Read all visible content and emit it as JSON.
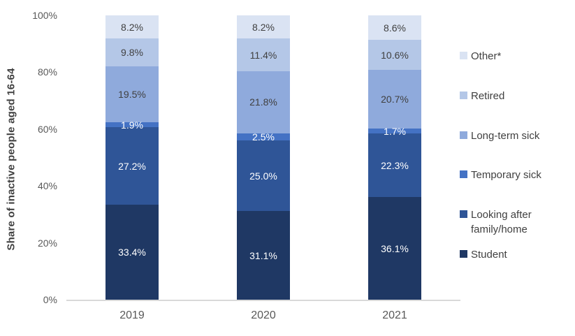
{
  "chart_data": {
    "type": "bar",
    "stacked": true,
    "orientation": "vertical",
    "title": "",
    "xlabel": "",
    "ylabel": "Share of inactive people aged 16-64",
    "ylim": [
      0,
      100
    ],
    "yticks": [
      0,
      20,
      40,
      60,
      80,
      100
    ],
    "ytick_labels": [
      "0%",
      "20%",
      "40%",
      "60%",
      "80%",
      "100%"
    ],
    "categories": [
      "2019",
      "2020",
      "2021"
    ],
    "series": [
      {
        "name": "Student",
        "color": "#1f3864",
        "label_color": "#ffffff",
        "values": [
          33.4,
          31.1,
          36.1
        ],
        "labels": [
          "33.4%",
          "31.1%",
          "36.1%"
        ]
      },
      {
        "name": "Looking after family/home",
        "color": "#2f5597",
        "label_color": "#ffffff",
        "values": [
          27.2,
          25.0,
          22.3
        ],
        "labels": [
          "27.2%",
          "25.0%",
          "22.3%"
        ]
      },
      {
        "name": "Temporary sick",
        "color": "#4472c4",
        "label_color": "#ffffff",
        "values": [
          1.9,
          2.5,
          1.7
        ],
        "labels": [
          "1.9%",
          "2.5%",
          "1.7%"
        ]
      },
      {
        "name": "Long-term sick",
        "color": "#8faadc",
        "label_color": "#404040",
        "values": [
          19.5,
          21.8,
          20.7
        ],
        "labels": [
          "19.5%",
          "21.8%",
          "20.7%"
        ]
      },
      {
        "name": "Retired",
        "color": "#b4c7e7",
        "label_color": "#404040",
        "values": [
          9.8,
          11.4,
          10.6
        ],
        "labels": [
          "9.8%",
          "11.4%",
          "10.6%"
        ]
      },
      {
        "name": "Other*",
        "color": "#dae3f3",
        "label_color": "#404040",
        "values": [
          8.2,
          8.2,
          8.6
        ],
        "labels": [
          "8.2%",
          "8.2%",
          "8.6%"
        ]
      }
    ],
    "legend_position": "right",
    "legend_order": [
      "Other*",
      "Retired",
      "Long-term sick",
      "Temporary sick",
      "Looking after family/home",
      "Student"
    ],
    "grid": false
  },
  "style_colors": {
    "axis_line": "#d9d9d9",
    "tick_text": "#595959",
    "axis_title_text": "#404040",
    "legend_text": "#404040",
    "background": "#ffffff"
  }
}
